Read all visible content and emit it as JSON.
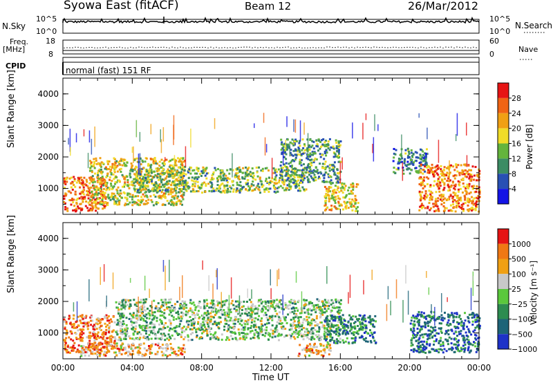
{
  "header": {
    "station": "Syowa East (fitACF)",
    "beam": "Beam 12",
    "date": "26/Mar/2012"
  },
  "top_panels": {
    "nsky_label": "N.Sky",
    "nsky_ticks": [
      "10^5",
      "10^0"
    ],
    "nsearch_label": "N.Search",
    "nsearch_ticks": [
      "10^5",
      "10^0"
    ],
    "freq_label": "Freq.",
    "freq_unit": "[MHz]",
    "freq_ticks": [
      "18",
      "8"
    ],
    "nave_label": "Nave",
    "nave_ticks": [
      "60",
      "0"
    ],
    "cpid_label": "CPID",
    "cpid_text": "normal (fast) 151 RF"
  },
  "chart_data": [
    {
      "type": "heatmap",
      "name": "power",
      "ylabel": "Slant Range [km]",
      "xlabel": "",
      "ylim": [
        180,
        4500
      ],
      "y_ticks": [
        "1000",
        "2000",
        "3000",
        "4000"
      ],
      "x_ticks": [
        "00:00",
        "04:00",
        "08:00",
        "12:00",
        "16:00",
        "20:00",
        "00:00"
      ],
      "colorbar_label": "Power [dB]",
      "colorbar_ticks": [
        "4",
        "8",
        "12",
        "16",
        "20",
        "24",
        "28"
      ],
      "colorbar_colors": [
        "#1414e6",
        "#2850b4",
        "#3c8c64",
        "#64b43c",
        "#f0dc28",
        "#f0a014",
        "#f06414",
        "#e61414"
      ],
      "echo_regions": [
        {
          "t0": 0.0,
          "t1": 2.5,
          "r0": 300,
          "r1": 1400,
          "level": 0.8
        },
        {
          "t0": 1.5,
          "t1": 7.0,
          "r0": 500,
          "r1": 2000,
          "level": 0.55
        },
        {
          "t0": 4.0,
          "t1": 14.0,
          "r0": 900,
          "r1": 1700,
          "level": 0.45
        },
        {
          "t0": 12.5,
          "t1": 16.0,
          "r0": 1200,
          "r1": 2600,
          "level": 0.35
        },
        {
          "t0": 15.0,
          "t1": 17.0,
          "r0": 300,
          "r1": 1200,
          "level": 0.6
        },
        {
          "t0": 19.0,
          "t1": 21.0,
          "r0": 1500,
          "r1": 2300,
          "level": 0.3
        },
        {
          "t0": 20.5,
          "t1": 24.0,
          "r0": 300,
          "r1": 1800,
          "level": 0.75
        }
      ]
    },
    {
      "type": "heatmap",
      "name": "velocity",
      "ylabel": "Slant Range [km]",
      "xlabel": "Time UT",
      "ylim": [
        180,
        4500
      ],
      "y_ticks": [
        "1000",
        "2000",
        "3000",
        "4000"
      ],
      "x_ticks": [
        "00:00",
        "04:00",
        "08:00",
        "12:00",
        "16:00",
        "20:00",
        "00:00"
      ],
      "colorbar_label": "Velocity [m s⁻¹]",
      "colorbar_ticks": [
        "1000",
        "500",
        "100",
        "25",
        "−25",
        "−100",
        "−500",
        "−1000"
      ],
      "colorbar_colors": [
        "#1e32c8",
        "#1e6478",
        "#2d8c50",
        "#5ac83c",
        "#c8c8c8",
        "#f0a014",
        "#f07814",
        "#e61414"
      ],
      "echo_regions": [
        {
          "t0": 0.0,
          "t1": 3.0,
          "r0": 400,
          "r1": 1600,
          "level": 0.8
        },
        {
          "t0": 1.0,
          "t1": 7.0,
          "r0": 300,
          "r1": 700,
          "level": 0.7
        },
        {
          "t0": 3.0,
          "t1": 16.0,
          "r0": 800,
          "r1": 2100,
          "level": 0.45
        },
        {
          "t0": 13.5,
          "t1": 15.5,
          "r0": 300,
          "r1": 700,
          "level": 0.7
        },
        {
          "t0": 15.0,
          "t1": 18.0,
          "r0": 700,
          "r1": 1600,
          "level": 0.25
        },
        {
          "t0": 20.0,
          "t1": 24.0,
          "r0": 400,
          "r1": 1700,
          "level": 0.2
        }
      ]
    }
  ]
}
